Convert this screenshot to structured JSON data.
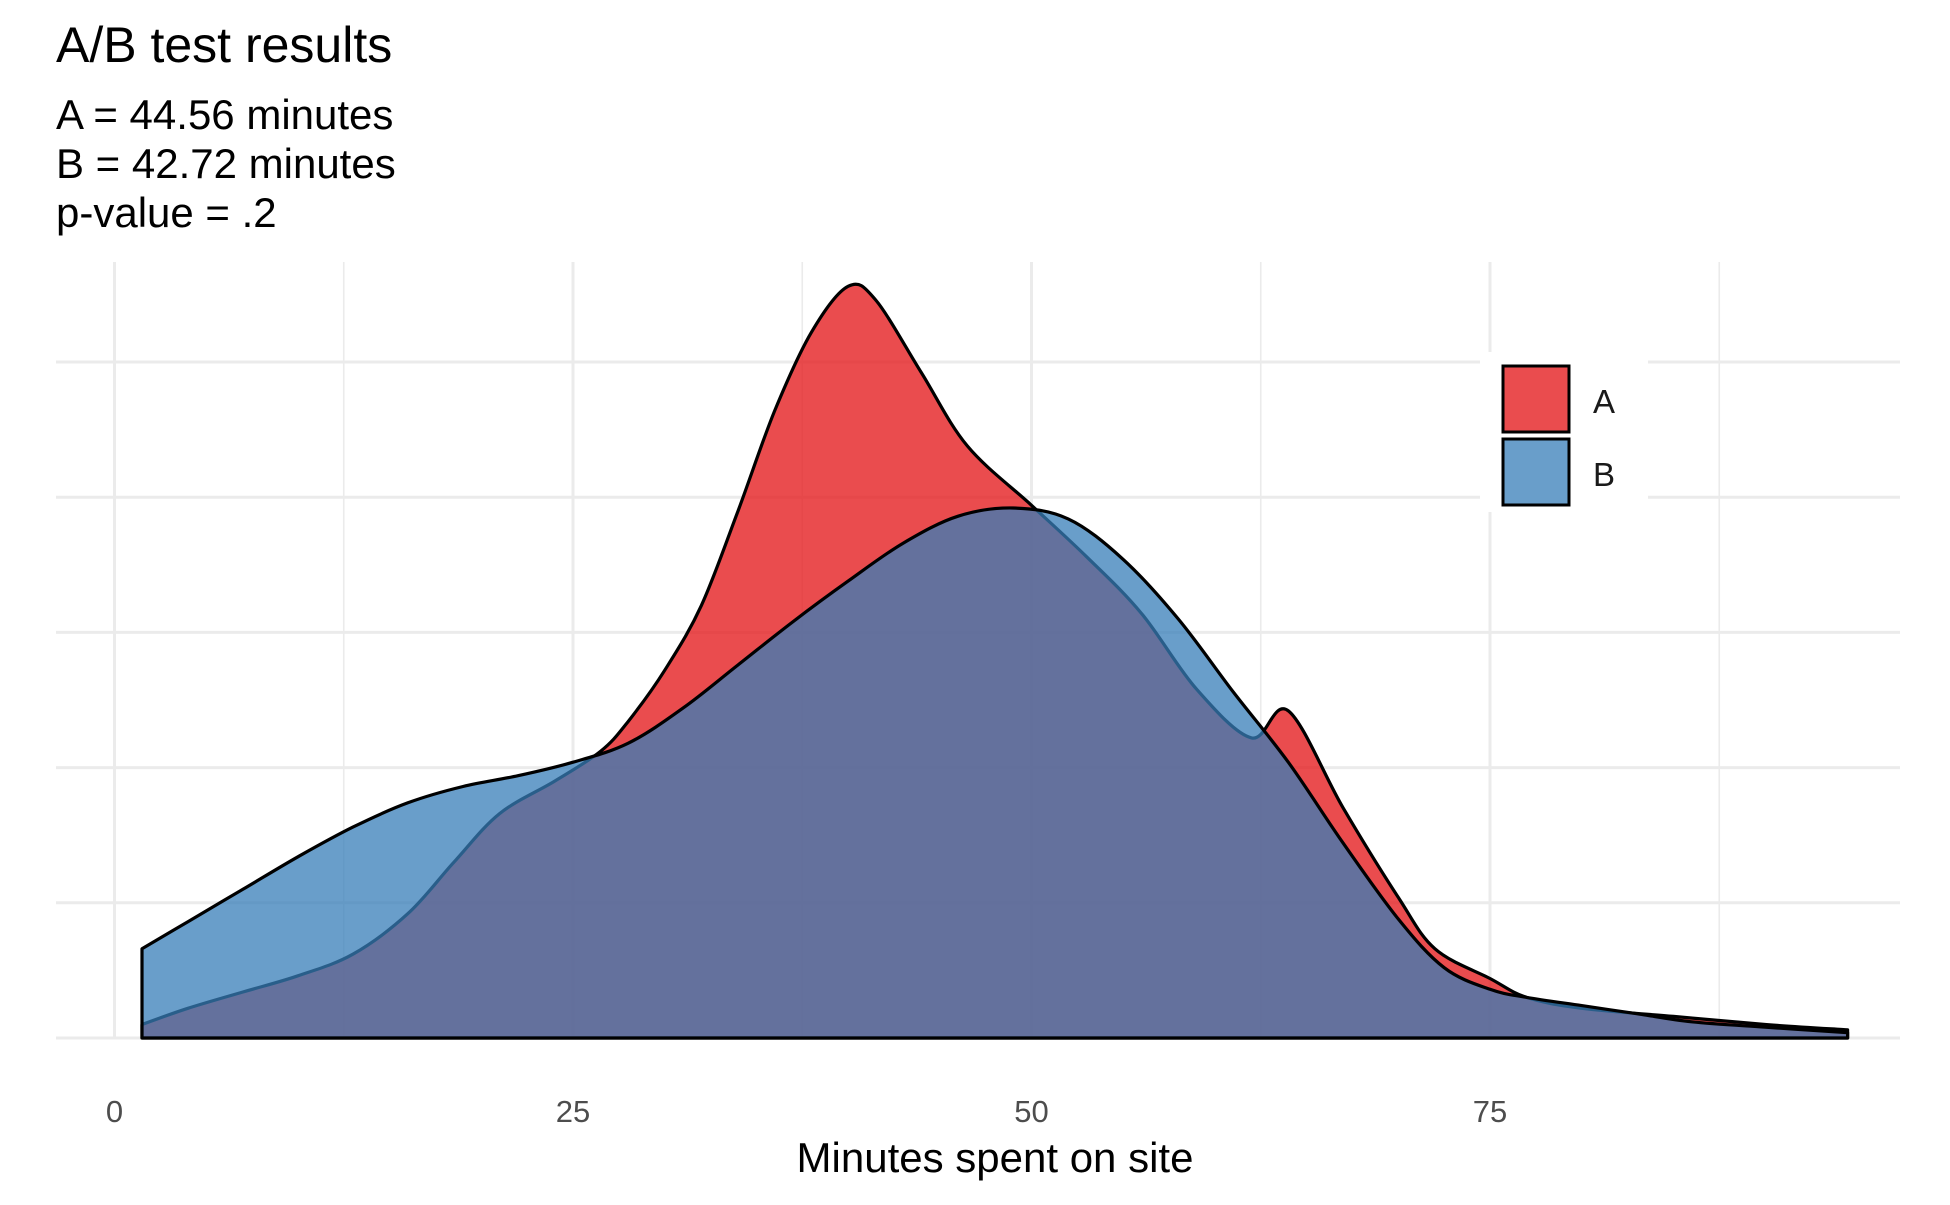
{
  "chart_data": {
    "type": "area",
    "chart_kind": "density",
    "title": "A/B test results",
    "subtitle_lines": [
      "A = 44.56 minutes",
      "B = 42.72 minutes",
      "p-value = .2"
    ],
    "xlabel": "Minutes spent on site",
    "ylabel": "",
    "xlim": [
      -1.5,
      97
    ],
    "ylim": [
      0,
      0.0287
    ],
    "x_ticks": [
      0,
      25,
      50,
      75
    ],
    "x_tick_labels": [
      "0",
      "25",
      "50",
      "75"
    ],
    "x_minor_gridlines": [
      12.5,
      37.5,
      62.5,
      87.5
    ],
    "y_gridlines": [
      0,
      0.005,
      0.01,
      0.015,
      0.02,
      0.025
    ],
    "y_tick_labels_shown": false,
    "grid": true,
    "legend_position": "top-right",
    "series": [
      {
        "name": "A",
        "color": "#E41A1C",
        "opacity": 0.78,
        "points": [
          [
            1.5,
            0.0005
          ],
          [
            4,
            0.0011
          ],
          [
            7,
            0.0017
          ],
          [
            10,
            0.0023
          ],
          [
            13,
            0.0031
          ],
          [
            16,
            0.0046
          ],
          [
            18.5,
            0.0065
          ],
          [
            21,
            0.0083
          ],
          [
            24,
            0.0095
          ],
          [
            26.5,
            0.0106
          ],
          [
            28,
            0.0117
          ],
          [
            30,
            0.0136
          ],
          [
            32,
            0.016
          ],
          [
            34,
            0.0195
          ],
          [
            36,
            0.0232
          ],
          [
            38,
            0.0261
          ],
          [
            40,
            0.0278
          ],
          [
            41.5,
            0.0273
          ],
          [
            44,
            0.0246
          ],
          [
            46.5,
            0.0219
          ],
          [
            50,
            0.0197
          ],
          [
            53,
            0.0178
          ],
          [
            56,
            0.0157
          ],
          [
            59,
            0.0129
          ],
          [
            62,
            0.0111
          ],
          [
            64,
            0.0121
          ],
          [
            67,
            0.0085
          ],
          [
            70,
            0.0052
          ],
          [
            72,
            0.0033
          ],
          [
            75,
            0.0022
          ],
          [
            77,
            0.0015
          ],
          [
            80,
            0.0011
          ],
          [
            85,
            0.0008
          ],
          [
            90,
            0.0005
          ],
          [
            94.5,
            0.0003
          ]
        ]
      },
      {
        "name": "B",
        "color": "#377EB8",
        "opacity": 0.75,
        "points": [
          [
            1.5,
            0.0033
          ],
          [
            4,
            0.0043
          ],
          [
            7,
            0.0055
          ],
          [
            10,
            0.0067
          ],
          [
            13,
            0.0078
          ],
          [
            16,
            0.0087
          ],
          [
            19,
            0.0093
          ],
          [
            22,
            0.0097
          ],
          [
            25,
            0.0102
          ],
          [
            28,
            0.0109
          ],
          [
            31,
            0.0122
          ],
          [
            34,
            0.0138
          ],
          [
            37,
            0.0154
          ],
          [
            40,
            0.0169
          ],
          [
            43,
            0.0183
          ],
          [
            46,
            0.0193
          ],
          [
            49,
            0.0196
          ],
          [
            52,
            0.0192
          ],
          [
            55,
            0.0177
          ],
          [
            58,
            0.0155
          ],
          [
            61,
            0.0128
          ],
          [
            64,
            0.0102
          ],
          [
            67,
            0.0072
          ],
          [
            70,
            0.0044
          ],
          [
            72.5,
            0.0026
          ],
          [
            75,
            0.0018
          ],
          [
            77,
            0.0015
          ],
          [
            80,
            0.0012
          ],
          [
            83,
            0.0009
          ],
          [
            86,
            0.0006
          ],
          [
            90,
            0.0004
          ],
          [
            94.5,
            0.0002
          ]
        ]
      }
    ]
  }
}
